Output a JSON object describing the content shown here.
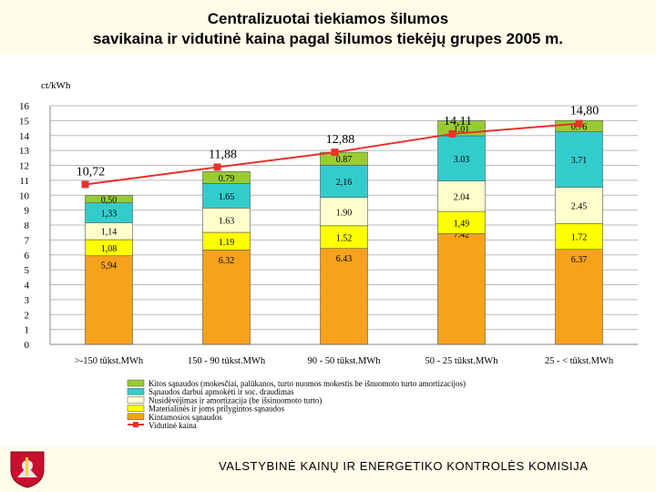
{
  "title": {
    "line1": "Centralizuotai tiekiamos šilumos",
    "line2": "savikaina ir vidutinė kaina pagal šilumos tiekėjų grupes 2005 m."
  },
  "footer": {
    "text": "VALSTYBINĖ KAINŲ IR ENERGETIKO KONTROLĖS KOMISIJA"
  },
  "chart_data": {
    "type": "stacked-bar-with-line",
    "ylabel": "ct/kWh",
    "ylim": [
      0,
      16
    ],
    "yticks": [
      0,
      1,
      2,
      3,
      4,
      5,
      6,
      7,
      8,
      9,
      10,
      11,
      12,
      13,
      14,
      15,
      16
    ],
    "categories": [
      ">-150 tūkst.MWh",
      "150 - 90 tūkst.MWh",
      "90 - 50 tūkst.MWh",
      "50 - 25 tūkst.MWh",
      "25 - < tūkst.MWh"
    ],
    "series": [
      {
        "name": "Kintamosios sąnaudos",
        "color": "#f7a21b",
        "values": [
          5.94,
          6.32,
          6.43,
          7.42,
          6.37
        ],
        "labels": [
          "5,94",
          "6.32",
          "6.43",
          "7.42",
          "6.37"
        ]
      },
      {
        "name": "Materialinės ir joms prilygintos sąnaudos",
        "color": "#ffff00",
        "values": [
          1.08,
          1.19,
          1.52,
          1.49,
          1.72
        ],
        "labels": [
          "1,08",
          "1.19",
          "1.52",
          "1,49",
          "1.72"
        ]
      },
      {
        "name": "Nusidėvėjimas ir amortizacija (be išsinuomoto turto)",
        "color": "#ffffcc",
        "values": [
          1.14,
          1.63,
          1.9,
          2.04,
          2.45
        ],
        "labels": [
          "1,14",
          "1.63",
          "1.90",
          "2.04",
          "2.45"
        ]
      },
      {
        "name": "Sąnaudos darbui apmokėti ir soc. draudimas",
        "color": "#33cccc",
        "values": [
          1.33,
          1.65,
          2.16,
          3.03,
          3.71
        ],
        "labels": [
          "1,33",
          "1.65",
          "2,16",
          "3.03",
          "3.71"
        ]
      },
      {
        "name": "Kitos sąnaudos (mokesčiai, palūkanos, turto nuomos mokestis be išnuomoto turto amortizacijos)",
        "color": "#99cc33",
        "values": [
          0.5,
          0.79,
          0.87,
          1.01,
          0.76
        ],
        "labels": [
          "0,50",
          "0.79",
          "0.87",
          "1.01",
          "0.76"
        ]
      }
    ],
    "line": {
      "name": "Vidutinė kaina",
      "color": "#e8322b",
      "values": [
        10.72,
        11.88,
        12.88,
        14.11,
        14.8
      ],
      "labels": [
        "10,72",
        "11,88",
        "12,88",
        "14,11",
        "14,80"
      ]
    },
    "legend_order": [
      4,
      3,
      2,
      1,
      0,
      "line"
    ]
  }
}
